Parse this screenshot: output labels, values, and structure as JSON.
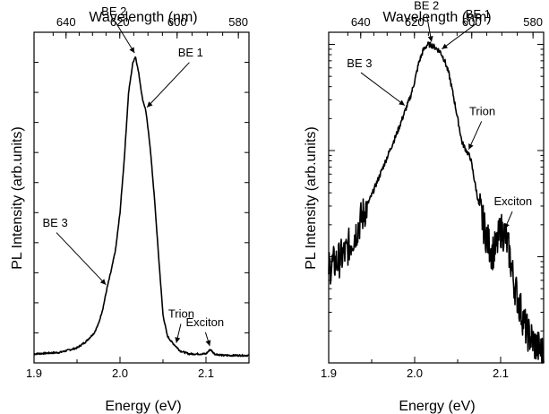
{
  "chart_data": [
    {
      "type": "line",
      "xlabel": "Energy (eV)",
      "ylabel": "PL Intensity (arb.units)",
      "x2label": "Wavelength (nm)",
      "xlim": [
        1.9,
        2.15
      ],
      "x_ticks": [
        1.9,
        2.0,
        2.1
      ],
      "x_tick_labels": [
        "1.9",
        "2.0",
        "2.1"
      ],
      "x2_ticks": [
        640,
        620,
        600,
        580
      ],
      "x2_tick_labels": [
        "640",
        "620",
        "600",
        "580"
      ],
      "y_scale": "linear",
      "y_tick_labels_shown": false,
      "ylim": [
        0,
        1.1
      ],
      "series": [
        {
          "x": [
            1.9,
            1.93,
            1.95,
            1.96,
            1.97,
            1.975,
            1.98,
            1.985,
            1.99,
            1.995,
            2.0,
            2.005,
            2.01,
            2.015,
            2.018,
            2.022,
            2.026,
            2.03,
            2.035,
            2.04,
            2.045,
            2.05,
            2.055,
            2.06,
            2.065,
            2.07,
            2.08,
            2.09,
            2.1,
            2.105,
            2.11,
            2.12,
            2.13,
            2.15
          ],
          "y": [
            0.03,
            0.035,
            0.05,
            0.07,
            0.1,
            0.13,
            0.18,
            0.25,
            0.31,
            0.38,
            0.5,
            0.68,
            0.9,
            1.0,
            1.02,
            0.96,
            0.88,
            0.84,
            0.72,
            0.55,
            0.35,
            0.16,
            0.09,
            0.07,
            0.055,
            0.04,
            0.03,
            0.03,
            0.03,
            0.045,
            0.03,
            0.025,
            0.025,
            0.025
          ]
        }
      ],
      "annotations": [
        {
          "text": "BE 2",
          "x": 2.018,
          "y": 1.02
        },
        {
          "text": "BE 1",
          "x": 2.03,
          "y": 0.84
        },
        {
          "text": "BE 3",
          "x": 1.985,
          "y": 0.25
        },
        {
          "text": "Trion",
          "x": 2.065,
          "y": 0.055
        },
        {
          "text": "Exciton",
          "x": 2.105,
          "y": 0.045
        }
      ]
    },
    {
      "type": "line",
      "xlabel": "Energy (eV)",
      "ylabel": "PL Intensity (arb.units)",
      "x2label": "Wavelength (nm)",
      "xlim": [
        1.9,
        2.15
      ],
      "x_ticks": [
        1.9,
        2.0,
        2.1
      ],
      "x_tick_labels": [
        "1.9",
        "2.0",
        "2.1"
      ],
      "x2_ticks": [
        640,
        620,
        600,
        580
      ],
      "x2_tick_labels": [
        "640",
        "620",
        "600",
        "580"
      ],
      "y_scale": "log",
      "y_tick_labels_shown": false,
      "ylim": [
        0.001,
        1.3
      ],
      "series": [
        {
          "x": [
            1.9,
            1.91,
            1.92,
            1.93,
            1.94,
            1.95,
            1.96,
            1.97,
            1.98,
            1.99,
            1.995,
            2.0,
            2.005,
            2.01,
            2.015,
            2.02,
            2.025,
            2.03,
            2.035,
            2.04,
            2.045,
            2.05,
            2.055,
            2.06,
            2.065,
            2.07,
            2.075,
            2.08,
            2.085,
            2.09,
            2.095,
            2.1,
            2.105,
            2.11,
            2.115,
            2.12,
            2.13,
            2.14,
            2.15
          ],
          "y": [
            0.008,
            0.009,
            0.011,
            0.016,
            0.025,
            0.038,
            0.06,
            0.095,
            0.15,
            0.25,
            0.32,
            0.45,
            0.68,
            0.88,
            1.0,
            0.98,
            0.92,
            0.85,
            0.7,
            0.52,
            0.33,
            0.2,
            0.12,
            0.1,
            0.085,
            0.05,
            0.03,
            0.02,
            0.014,
            0.011,
            0.012,
            0.018,
            0.016,
            0.011,
            0.006,
            0.004,
            0.002,
            0.0015,
            0.0012
          ]
        }
      ],
      "annotations": [
        {
          "text": "BE 2",
          "x": 2.02,
          "y": 0.98
        },
        {
          "text": "BE 1",
          "x": 2.03,
          "y": 0.85
        },
        {
          "text": "BE 3",
          "x": 1.99,
          "y": 0.25
        },
        {
          "text": "Trion",
          "x": 2.062,
          "y": 0.095
        },
        {
          "text": "Exciton",
          "x": 2.104,
          "y": 0.017
        }
      ]
    }
  ]
}
